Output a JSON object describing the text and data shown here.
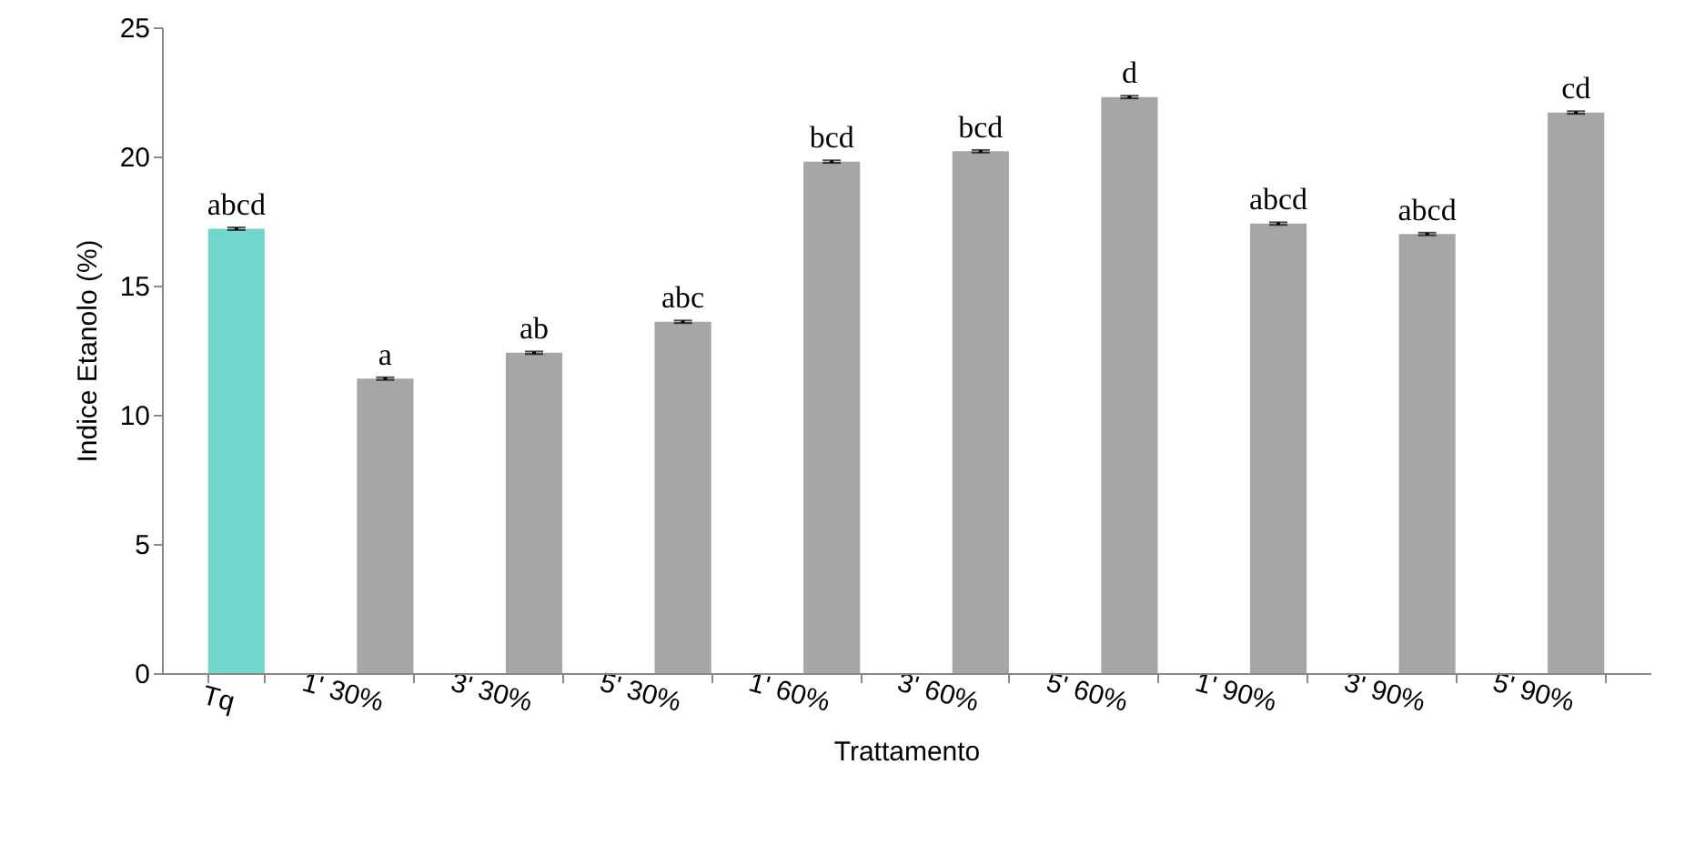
{
  "chart_data": {
    "type": "bar",
    "xlabel": "Trattamento",
    "ylabel": "Indice Etanolo (%)",
    "categories": [
      "Tq",
      "1' 30%",
      "3' 30%",
      "5' 30%",
      "1' 60%",
      "3' 60%",
      "5' 60%",
      "1' 90%",
      "3' 90%",
      "5' 90%"
    ],
    "values": [
      17.2,
      11.4,
      12.4,
      13.6,
      19.8,
      20.2,
      22.3,
      17.4,
      17.0,
      21.7
    ],
    "errors": [
      0.05,
      0.05,
      0.05,
      0.05,
      0.05,
      0.05,
      0.05,
      0.05,
      0.05,
      0.05
    ],
    "colors": [
      "#72d6cc",
      "#a6a6a6",
      "#a6a6a6",
      "#a6a6a6",
      "#a6a6a6",
      "#a6a6a6",
      "#a6a6a6",
      "#a6a6a6",
      "#a6a6a6",
      "#a6a6a6"
    ],
    "ylim": [
      0,
      25
    ],
    "yticks": [
      0,
      5,
      10,
      15,
      20,
      25
    ],
    "annotations": [
      "abcd",
      "a",
      "ab",
      "abc",
      "bcd",
      "bcd",
      "d",
      "abcd",
      "abcd",
      "cd"
    ]
  }
}
